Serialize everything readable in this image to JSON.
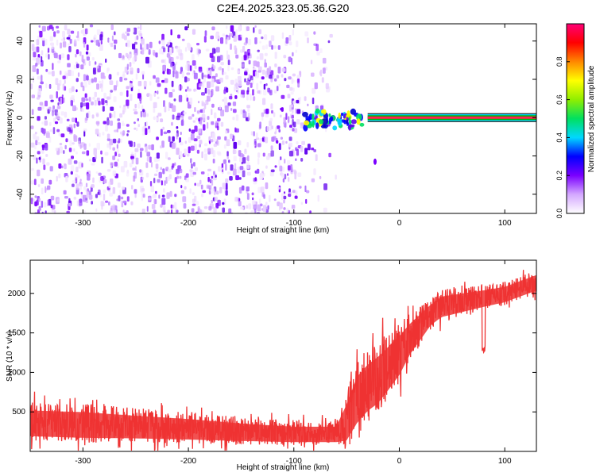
{
  "title": "C2E4.2025.323.05.36.G20",
  "chart_data": [
    {
      "type": "heatmap",
      "xlabel": "Height of straight line (km)",
      "ylabel": "Frequency (Hz)",
      "xlim": [
        -350,
        130
      ],
      "ylim": [
        -50,
        49
      ],
      "xticks": [
        -300,
        -200,
        -100,
        0,
        100
      ],
      "yticks": [
        -40,
        -20,
        0,
        20,
        40
      ],
      "noise_region_km": [
        -350,
        -65
      ],
      "signal": {
        "frequency_hz": 0,
        "start_km": -90,
        "end_km": 130,
        "note": "narrow band near 0 Hz, scattered before -30 km, steady from -30 km onward"
      },
      "colorbar": {
        "label": "Normalized spectral amplitude",
        "range": [
          0.0,
          1.0
        ],
        "ticks": [
          "0.0",
          "0.2",
          "0.4",
          "0.6",
          "0.8"
        ],
        "colors": [
          "#ffffff",
          "#d4a8ff",
          "#7a00ff",
          "#0000ff",
          "#00d8ff",
          "#00e060",
          "#90ee00",
          "#ffff00",
          "#ff8800",
          "#ff0000",
          "#ff0077"
        ]
      }
    },
    {
      "type": "line",
      "xlabel": "Height of straight line (km)",
      "ylabel": "SNR (10 * v/v)",
      "xlim": [
        -350,
        130
      ],
      "ylim": [
        0,
        2420
      ],
      "xticks": [
        -300,
        -200,
        -100,
        0,
        100
      ],
      "yticks": [
        500,
        1000,
        1500,
        2000
      ],
      "color": "#ee3333",
      "series": [
        {
          "name": "SNR",
          "x": [
            -350,
            -300,
            -250,
            -200,
            -150,
            -100,
            -60,
            -50,
            -40,
            -30,
            -20,
            -10,
            0,
            10,
            20,
            30,
            40,
            60,
            80,
            100,
            120,
            130
          ],
          "mean": [
            380,
            360,
            330,
            300,
            260,
            230,
            230,
            400,
            700,
            850,
            950,
            1100,
            1250,
            1450,
            1600,
            1750,
            1850,
            1900,
            1950,
            2000,
            2100,
            2150
          ],
          "spread": [
            250,
            250,
            220,
            200,
            170,
            150,
            150,
            350,
            450,
            450,
            450,
            420,
            380,
            300,
            250,
            200,
            200,
            180,
            160,
            150,
            150,
            150
          ]
        }
      ],
      "dips": [
        {
          "x": 80,
          "y": 1250
        }
      ]
    }
  ]
}
